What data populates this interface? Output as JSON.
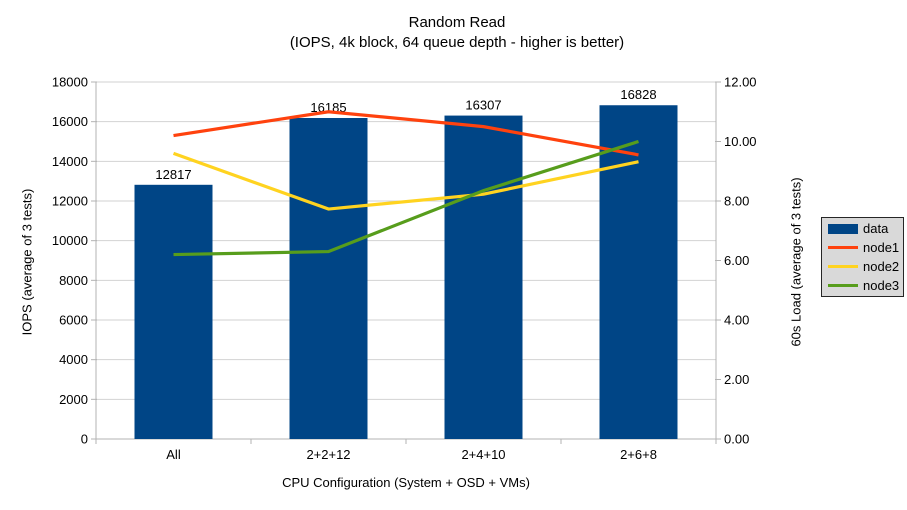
{
  "title": {
    "line1": "Random Read",
    "line2": "(IOPS, 4k block, 64 queue depth - higher is better)"
  },
  "colors": {
    "bar": "#004586",
    "node1": "#ff420e",
    "node2": "#ffd320",
    "node3": "#579d1c",
    "grid": "#d2d2d2",
    "axis": "#b3b3b3",
    "text": "#000000",
    "legend_bg": "#d9d9d9",
    "legend_border": "#262626"
  },
  "chart_data": {
    "type": "bar",
    "subtype": "bar+line dual axis",
    "categories": [
      "All",
      "2+2+12",
      "2+4+10",
      "2+6+8"
    ],
    "bar_series": {
      "name": "data",
      "axis": "left",
      "color": "#004586",
      "values": [
        12817,
        16185,
        16307,
        16828
      ],
      "data_labels": [
        "12817",
        "16185",
        "16307",
        "16828"
      ]
    },
    "line_series": [
      {
        "name": "node1",
        "axis": "right",
        "color": "#ff420e",
        "values": [
          10.2,
          11.0,
          10.5,
          9.55
        ]
      },
      {
        "name": "node2",
        "axis": "right",
        "color": "#ffd320",
        "values": [
          9.6,
          7.73,
          8.23,
          9.32
        ]
      },
      {
        "name": "node3",
        "axis": "right",
        "color": "#579d1c",
        "values": [
          6.2,
          6.3,
          8.35,
          10.0
        ]
      }
    ],
    "left_axis": {
      "title": "IOPS (average of 3 tests)",
      "min": 0,
      "max": 18000,
      "step": 2000
    },
    "right_axis": {
      "title": "60s Load (average of 3 tests)",
      "min": 0,
      "max": 12,
      "step": 2,
      "decimals": 2
    },
    "x_axis": {
      "title": "CPU Configuration (System + OSD + VMs)"
    },
    "legend": [
      "data",
      "node1",
      "node2",
      "node3"
    ],
    "legend_position": "right",
    "grid": "horizontal gridlines at left-axis steps"
  }
}
